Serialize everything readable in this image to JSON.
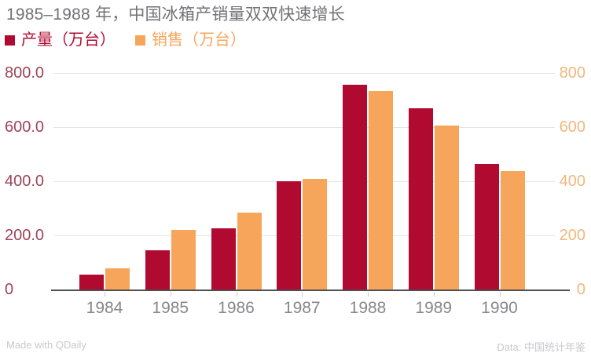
{
  "title": "1985–1988 年，中国冰箱产销量双双快速增长",
  "footer": {
    "left": "Made with QDaily",
    "right": "Data: 中国统计年鉴"
  },
  "colors": {
    "production": "#B00A30",
    "sales": "#F8A55C",
    "title_text": "#727277",
    "axis_left_labels": "#9E4458",
    "axis_right_labels": "#F1B87E",
    "x_labels": "#87878C",
    "gridline": "#E4E4E8",
    "axis_line": "#4D4D52",
    "tick": "#C9C9CE",
    "footer_text": "#C9C9CE",
    "background": "#FFFFFF"
  },
  "chart_data": {
    "type": "bar",
    "title": "1985–1988 年，中国冰箱产销量双双快速增长",
    "categories": [
      "1984",
      "1985",
      "1986",
      "1987",
      "1988",
      "1989",
      "1990"
    ],
    "series": [
      {
        "name": "产量（万台）",
        "color": "#B00A30",
        "axis": "left",
        "values": [
          55,
          145,
          225,
          401,
          758,
          671,
          463
        ]
      },
      {
        "name": "销售（万台）",
        "color": "#F8A55C",
        "axis": "right",
        "values": [
          78,
          220,
          285,
          410,
          733,
          605,
          437
        ]
      }
    ],
    "ylim": [
      0,
      800
    ],
    "y_ticks": [
      0,
      200,
      400,
      600,
      800
    ],
    "y_axis_left": {
      "tick_labels": [
        "0",
        "200.0",
        "400.0",
        "600.0",
        "800.0"
      ]
    },
    "y_axis_right": {
      "tick_labels": [
        "0",
        "200",
        "400",
        "600",
        "800"
      ]
    },
    "grid": true,
    "dual_axis": true,
    "legend_position": "top-left",
    "data_source": "中国统计年鉴"
  }
}
